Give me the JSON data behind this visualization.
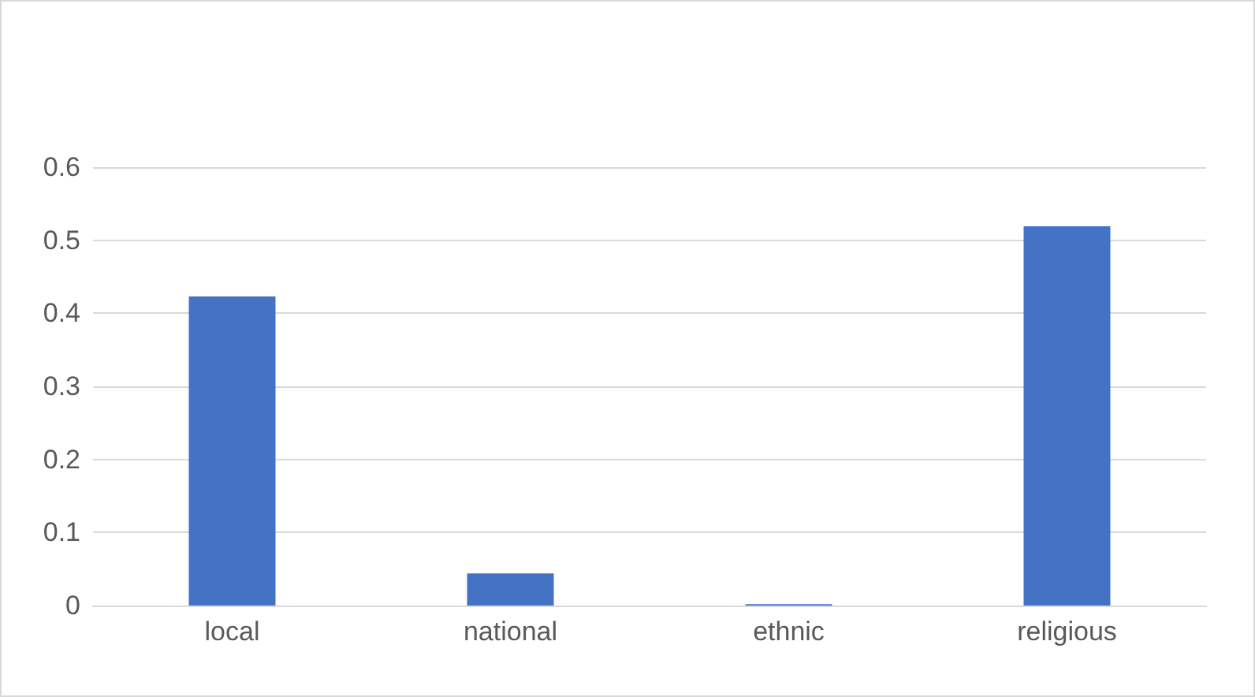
{
  "chart_data": {
    "type": "bar",
    "categories": [
      "local",
      "national",
      "ethnic",
      "religious"
    ],
    "values": [
      0.423,
      0.044,
      0.002,
      0.519
    ],
    "color": "#4472c4",
    "ylim": [
      0,
      0.6
    ],
    "yticks": [
      0,
      0.1,
      0.2,
      0.3,
      0.4,
      0.5,
      0.6
    ],
    "grid": "y"
  }
}
